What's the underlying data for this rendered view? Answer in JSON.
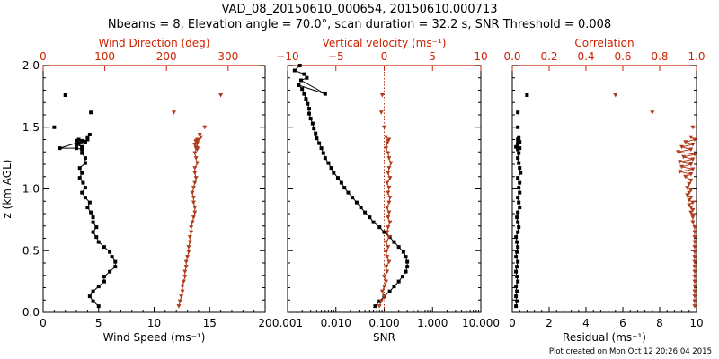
{
  "title_line1": "VAD_08_20150610_000654, 20150610.000713",
  "title_line2": "Nbeams = 8, Elevation angle = 70.0°, scan duration = 32.2 s, SNR Threshold = 0.008",
  "credit": "Plot created on Mon Oct 12 20:26:04 2015",
  "colors": {
    "black_series": "#000000",
    "red_series": "#b03a1a",
    "red_axis": "#cc2200"
  },
  "chart_data": [
    {
      "type": "scatter",
      "ylabel": "z (km AGL)",
      "ylim": [
        0,
        2.0
      ],
      "yticks": [
        "0.0",
        "0.5",
        "1.0",
        "1.5",
        "2.0"
      ],
      "xlabel": "Wind Speed (ms⁻¹)",
      "xlim": [
        0,
        20
      ],
      "xticks": [
        "0",
        "5",
        "10",
        "15",
        "20"
      ],
      "top_xlabel": "Wind Direction (deg)",
      "top_xlim": [
        0,
        360
      ],
      "top_xticks": [
        "0",
        "100",
        "200",
        "300"
      ],
      "series": [
        {
          "axis": "bottom",
          "color": "black",
          "x": [
            5.0,
            4.5,
            4.2,
            4.5,
            5.0,
            5.5,
            5.5,
            6.0,
            6.5,
            6.5,
            6.2,
            6.0,
            5.5,
            5.0,
            4.8,
            4.5,
            4.8,
            4.5,
            4.5,
            4.3,
            4.0,
            4.2,
            3.8,
            3.5,
            3.8,
            3.6,
            3.3,
            3.5,
            3.3,
            3.8,
            3.8,
            3.5,
            3.5,
            3.2,
            3.0,
            3.2,
            3.5,
            3.8,
            3.0,
            3.5,
            3.5,
            3.0,
            1.5,
            4.0,
            4.0,
            4.2
          ],
          "y": [
            0.05,
            0.09,
            0.13,
            0.17,
            0.21,
            0.25,
            0.29,
            0.33,
            0.37,
            0.41,
            0.45,
            0.49,
            0.53,
            0.57,
            0.61,
            0.65,
            0.69,
            0.73,
            0.77,
            0.81,
            0.85,
            0.89,
            0.93,
            0.97,
            1.01,
            1.05,
            1.09,
            1.13,
            1.17,
            1.21,
            1.25,
            1.29,
            1.33,
            1.37,
            1.39,
            1.4,
            1.39,
            1.38,
            1.36,
            1.34,
            1.32,
            1.33,
            1.33,
            1.4,
            1.42,
            1.44
          ]
        },
        {
          "axis": "bottom",
          "color": "black",
          "connect": false,
          "x": [
            1.0,
            4.3,
            2.0
          ],
          "y": [
            1.5,
            1.62,
            1.76
          ]
        },
        {
          "axis": "top",
          "color": "red",
          "x": [
            220,
            222,
            224,
            226,
            226,
            228,
            230,
            230,
            232,
            232,
            234,
            236,
            236,
            238,
            238,
            240,
            240,
            242,
            244,
            246,
            246,
            244,
            244,
            242,
            244,
            246,
            248,
            246,
            246,
            250,
            248,
            246,
            248,
            250,
            248,
            250,
            250,
            248,
            246,
            248,
            250,
            250,
            248,
            252,
            256,
            254
          ],
          "y": [
            0.05,
            0.09,
            0.13,
            0.17,
            0.21,
            0.25,
            0.29,
            0.33,
            0.37,
            0.41,
            0.45,
            0.49,
            0.53,
            0.57,
            0.61,
            0.65,
            0.69,
            0.73,
            0.77,
            0.81,
            0.85,
            0.89,
            0.93,
            0.97,
            1.01,
            1.05,
            1.09,
            1.13,
            1.17,
            1.21,
            1.25,
            1.29,
            1.33,
            1.37,
            1.39,
            1.4,
            1.39,
            1.38,
            1.36,
            1.34,
            1.32,
            1.33,
            1.33,
            1.4,
            1.42,
            1.44
          ]
        },
        {
          "axis": "top",
          "color": "red",
          "connect": false,
          "x": [
            262,
            212,
            288
          ],
          "y": [
            1.5,
            1.62,
            1.76
          ]
        }
      ]
    },
    {
      "type": "scatter",
      "xlabel": "SNR",
      "xscale": "log",
      "xlim": [
        0.001,
        10
      ],
      "xticks": [
        "0.001",
        "0.010",
        "0.100",
        "1.000",
        "10.000"
      ],
      "top_xlabel": "Vertical velocity (ms⁻¹)",
      "top_xlim": [
        -10,
        10
      ],
      "top_xticks": [
        "−10",
        "−5",
        "0",
        "5",
        "10"
      ],
      "ylim": [
        0,
        2.0
      ],
      "vline_top_x": 0,
      "series": [
        {
          "axis": "bottom",
          "color": "black",
          "x": [
            0.065,
            0.08,
            0.1,
            0.13,
            0.16,
            0.2,
            0.24,
            0.28,
            0.3,
            0.3,
            0.28,
            0.25,
            0.2,
            0.16,
            0.13,
            0.1,
            0.08,
            0.06,
            0.05,
            0.04,
            0.033,
            0.027,
            0.022,
            0.018,
            0.015,
            0.013,
            0.011,
            0.009,
            0.008,
            0.007,
            0.006,
            0.0055,
            0.005,
            0.0045,
            0.004,
            0.0038,
            0.0035,
            0.0033,
            0.003,
            0.0028,
            0.0028,
            0.0026,
            0.0024,
            0.0022,
            0.002,
            0.0017,
            0.006,
            0.0019,
            0.0025,
            0.0022,
            0.0014,
            0.0018
          ],
          "y": [
            0.05,
            0.09,
            0.13,
            0.17,
            0.21,
            0.25,
            0.29,
            0.33,
            0.37,
            0.41,
            0.45,
            0.49,
            0.53,
            0.57,
            0.61,
            0.65,
            0.69,
            0.73,
            0.77,
            0.81,
            0.85,
            0.89,
            0.93,
            0.97,
            1.01,
            1.05,
            1.09,
            1.13,
            1.17,
            1.21,
            1.25,
            1.29,
            1.33,
            1.37,
            1.41,
            1.45,
            1.49,
            1.53,
            1.57,
            1.61,
            1.65,
            1.69,
            1.73,
            1.77,
            1.81,
            1.84,
            1.77,
            1.88,
            1.9,
            1.93,
            1.96,
            2.0
          ]
        },
        {
          "axis": "top",
          "color": "red",
          "x": [
            -0.5,
            -0.3,
            0.0,
            -0.2,
            0.0,
            0.2,
            0.0,
            0.3,
            0.2,
            0.5,
            0.3,
            0.2,
            0.4,
            0.2,
            0.5,
            0.3,
            0.4,
            0.6,
            0.4,
            0.5,
            0.3,
            0.5,
            0.6,
            0.4,
            0.5,
            0.3,
            0.6,
            0.4,
            0.5,
            0.7,
            0.5,
            0.4,
            0.2,
            0.3,
            0.4,
            0.5,
            0.2
          ],
          "y": [
            0.05,
            0.09,
            0.13,
            0.17,
            0.21,
            0.25,
            0.29,
            0.33,
            0.37,
            0.41,
            0.45,
            0.49,
            0.53,
            0.57,
            0.61,
            0.65,
            0.69,
            0.73,
            0.77,
            0.81,
            0.85,
            0.89,
            0.93,
            0.97,
            1.01,
            1.05,
            1.09,
            1.13,
            1.17,
            1.21,
            1.25,
            1.29,
            1.33,
            1.37,
            1.39,
            1.4,
            1.42
          ]
        },
        {
          "axis": "top",
          "color": "red",
          "connect": false,
          "x": [
            0.0,
            -0.3,
            -0.2
          ],
          "y": [
            1.5,
            1.62,
            1.76
          ]
        }
      ]
    },
    {
      "type": "scatter",
      "xlabel": "Residual (ms⁻¹)",
      "xlim": [
        0,
        10
      ],
      "xticks": [
        "0",
        "2",
        "4",
        "6",
        "8",
        "10"
      ],
      "top_xlabel": "Correlation",
      "top_xlim": [
        0,
        1.0
      ],
      "top_xticks": [
        "0.0",
        "0.2",
        "0.4",
        "0.6",
        "0.8",
        "1.0"
      ],
      "ylim": [
        0,
        2.0
      ],
      "series": [
        {
          "axis": "bottom",
          "color": "black",
          "x": [
            0.2,
            0.25,
            0.2,
            0.25,
            0.2,
            0.3,
            0.25,
            0.2,
            0.25,
            0.3,
            0.2,
            0.25,
            0.3,
            0.25,
            0.2,
            0.3,
            0.35,
            0.3,
            0.25,
            0.3,
            0.4,
            0.35,
            0.3,
            0.4,
            0.35,
            0.4,
            0.3,
            0.45,
            0.4,
            0.35,
            0.3,
            0.35,
            0.4,
            0.3,
            0.35,
            0.3,
            0.35,
            0.4,
            0.3,
            0.2,
            0.3,
            0.35
          ],
          "y": [
            0.05,
            0.09,
            0.13,
            0.17,
            0.21,
            0.25,
            0.29,
            0.33,
            0.37,
            0.41,
            0.45,
            0.49,
            0.53,
            0.57,
            0.61,
            0.65,
            0.69,
            0.73,
            0.77,
            0.81,
            0.85,
            0.89,
            0.93,
            0.97,
            1.01,
            1.05,
            1.09,
            1.13,
            1.17,
            1.21,
            1.25,
            1.29,
            1.33,
            1.37,
            1.39,
            1.4,
            1.39,
            1.38,
            1.36,
            1.34,
            1.32,
            1.42
          ]
        },
        {
          "axis": "bottom",
          "color": "black",
          "connect": false,
          "x": [
            0.3,
            0.3,
            0.8
          ],
          "y": [
            1.5,
            1.62,
            1.76
          ]
        },
        {
          "axis": "top",
          "color": "red",
          "x": [
            0.99,
            0.99,
            0.99,
            0.99,
            0.99,
            0.99,
            0.99,
            0.99,
            0.99,
            0.99,
            0.99,
            0.99,
            0.99,
            0.99,
            0.99,
            0.99,
            0.99,
            0.98,
            0.98,
            0.98,
            0.97,
            0.98,
            0.97,
            0.96,
            0.98,
            0.96,
            0.97,
            0.95,
            0.96,
            0.97,
            0.95,
            0.96,
            0.97,
            0.94,
            0.97,
            0.91,
            0.98,
            0.92,
            0.97,
            0.91,
            0.98,
            0.93,
            0.99,
            0.9,
            0.97,
            0.92,
            0.98,
            0.94,
            0.99,
            0.97
          ],
          "y": [
            0.05,
            0.09,
            0.13,
            0.17,
            0.21,
            0.25,
            0.29,
            0.33,
            0.37,
            0.41,
            0.45,
            0.49,
            0.53,
            0.57,
            0.61,
            0.65,
            0.69,
            0.73,
            0.77,
            0.79,
            0.81,
            0.83,
            0.85,
            0.87,
            0.89,
            0.91,
            0.93,
            0.95,
            0.97,
            0.99,
            1.01,
            1.04,
            1.07,
            1.1,
            1.12,
            1.14,
            1.16,
            1.18,
            1.2,
            1.22,
            1.24,
            1.26,
            1.28,
            1.3,
            1.32,
            1.34,
            1.36,
            1.38,
            1.4,
            1.42
          ]
        },
        {
          "axis": "top",
          "color": "red",
          "connect": false,
          "x": [
            0.98,
            0.76,
            0.56
          ],
          "y": [
            1.5,
            1.62,
            1.76
          ]
        }
      ]
    }
  ]
}
